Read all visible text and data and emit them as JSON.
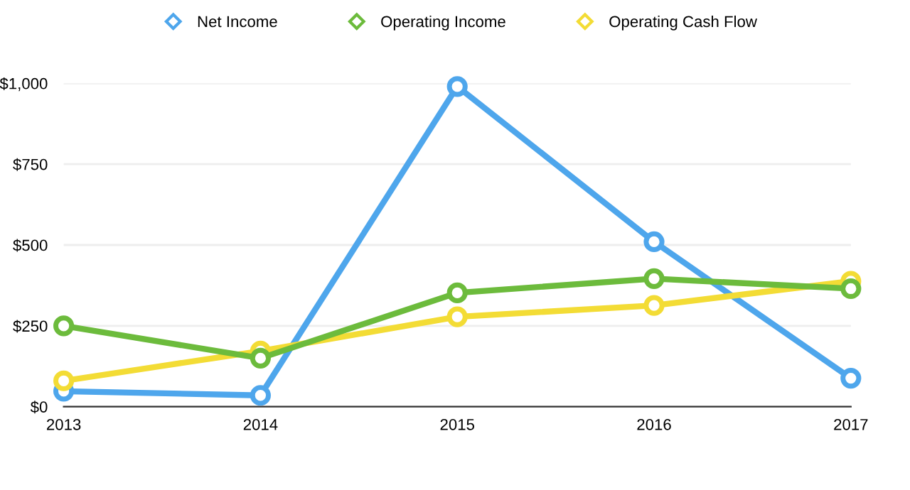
{
  "chart_data": {
    "type": "line",
    "categories": [
      "2013",
      "2014",
      "2015",
      "2016",
      "2017"
    ],
    "series": [
      {
        "name": "Net Income",
        "color": "#4ea6ec",
        "values": [
          48,
          35,
          990,
          510,
          88
        ]
      },
      {
        "name": "Operating Income",
        "color": "#6cbb3c",
        "values": [
          250,
          150,
          352,
          396,
          365
        ]
      },
      {
        "name": "Operating Cash Flow",
        "color": "#f3dc35",
        "values": [
          80,
          172,
          278,
          313,
          388
        ]
      }
    ],
    "ylim": [
      0,
      1000
    ],
    "yticks": [
      {
        "value": 0,
        "label": "$0"
      },
      {
        "value": 250,
        "label": "$250"
      },
      {
        "value": 500,
        "label": "$500"
      },
      {
        "value": 750,
        "label": "$750"
      },
      {
        "value": 1000,
        "label": "$1,000"
      }
    ],
    "grid": "y",
    "legend": "top",
    "marker": "circle",
    "line_style": "solid"
  }
}
